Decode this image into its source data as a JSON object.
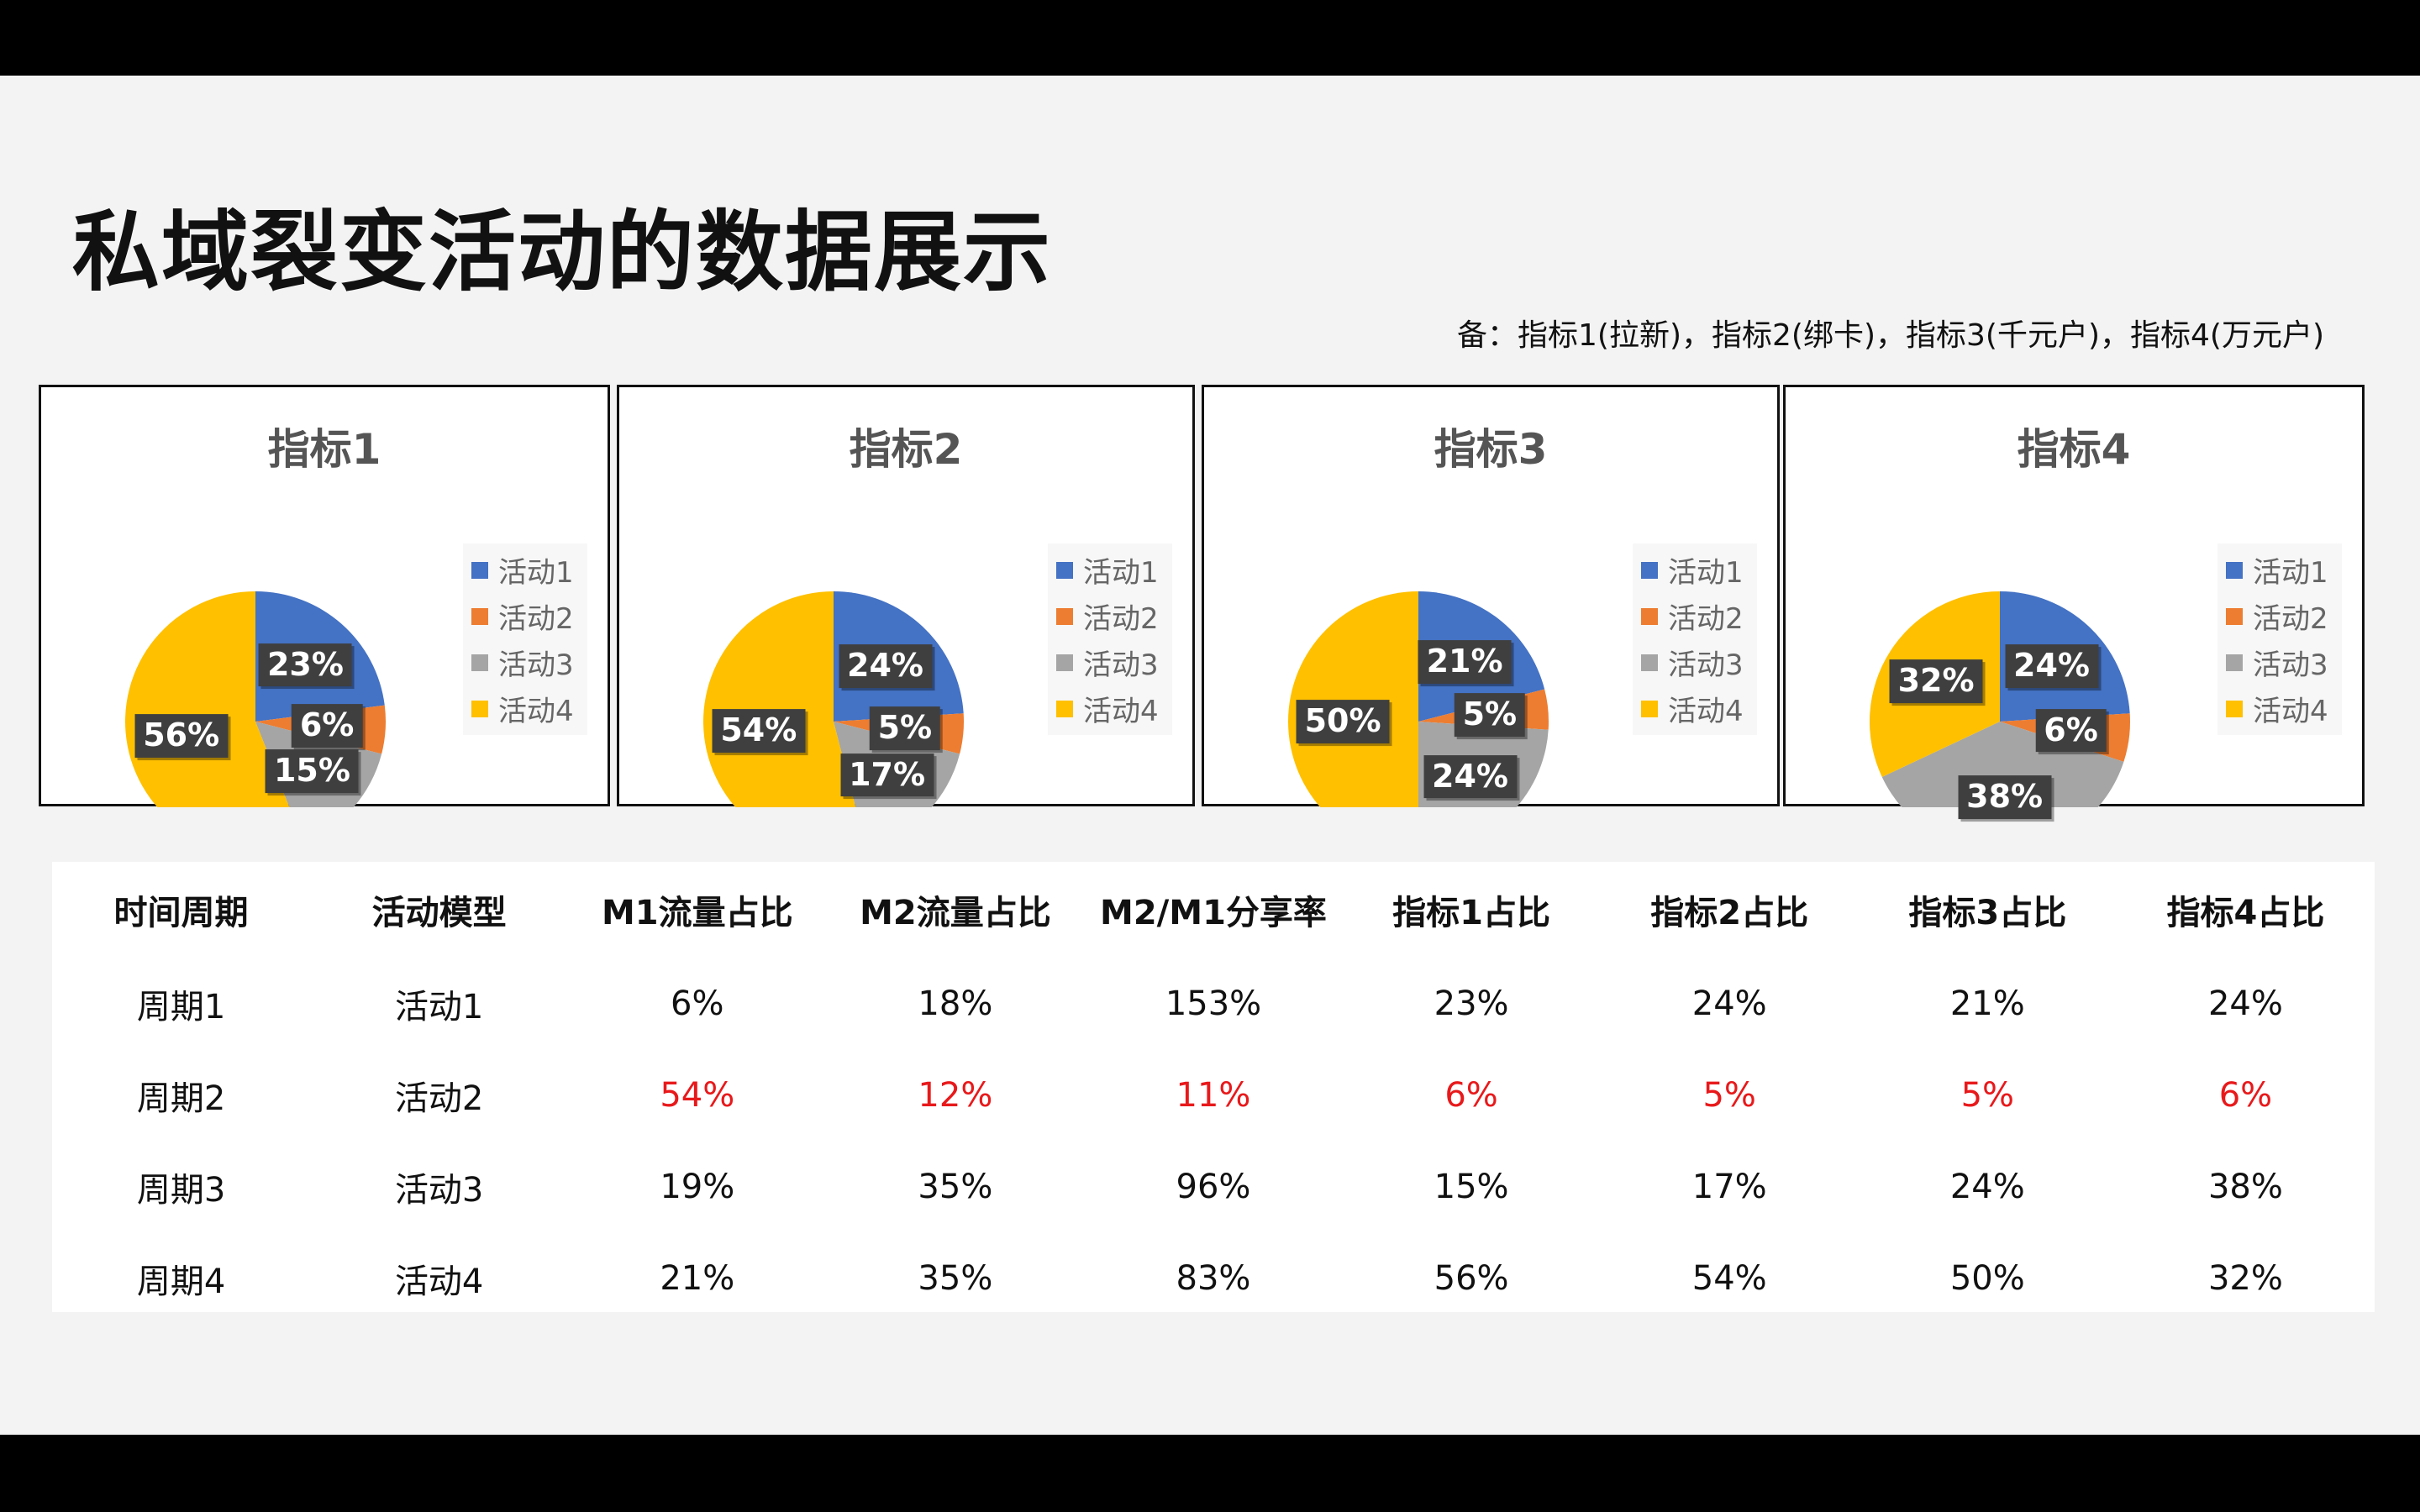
{
  "title": "私域裂变活动的数据展示",
  "note": "备：指标1(拉新)，指标2(绑卡)，指标3(千元户)，指标4(万元户)",
  "colors": {
    "activity1": "#4472C4",
    "activity2": "#ED7D31",
    "activity3": "#A5A5A5",
    "activity4": "#FFC000",
    "highlight_text": "#E8191B"
  },
  "chart_data": [
    {
      "type": "pie",
      "title": "指标1",
      "categories": [
        "活动1",
        "活动2",
        "活动3",
        "活动4"
      ],
      "values": [
        23,
        6,
        15,
        56
      ],
      "labels": [
        "23%",
        "6%",
        "15%",
        "56%"
      ],
      "legend_position": "right"
    },
    {
      "type": "pie",
      "title": "指标2",
      "categories": [
        "活动1",
        "活动2",
        "活动3",
        "活动4"
      ],
      "values": [
        24,
        5,
        17,
        54
      ],
      "labels": [
        "24%",
        "5%",
        "17%",
        "54%"
      ],
      "legend_position": "right"
    },
    {
      "type": "pie",
      "title": "指标3",
      "categories": [
        "活动1",
        "活动2",
        "活动3",
        "活动4"
      ],
      "values": [
        21,
        5,
        24,
        50
      ],
      "labels": [
        "21%",
        "5%",
        "24%",
        "50%"
      ],
      "legend_position": "right"
    },
    {
      "type": "pie",
      "title": "指标4",
      "categories": [
        "活动1",
        "活动2",
        "活动3",
        "活动4"
      ],
      "values": [
        24,
        6,
        38,
        32
      ],
      "labels": [
        "24%",
        "6%",
        "38%",
        "32%"
      ],
      "legend_position": "right"
    }
  ],
  "table": {
    "headers": [
      "时间周期",
      "活动模型",
      "M1流量占比",
      "M2流量占比",
      "M2/M1分享率",
      "指标1占比",
      "指标2占比",
      "指标3占比",
      "指标4占比"
    ],
    "rows": [
      {
        "cells": [
          "周期1",
          "活动1",
          "6%",
          "18%",
          "153%",
          "23%",
          "24%",
          "21%",
          "24%"
        ],
        "highlight": false
      },
      {
        "cells": [
          "周期2",
          "活动2",
          "54%",
          "12%",
          "11%",
          "6%",
          "5%",
          "5%",
          "6%"
        ],
        "highlight": true
      },
      {
        "cells": [
          "周期3",
          "活动3",
          "19%",
          "35%",
          "96%",
          "15%",
          "17%",
          "24%",
          "38%"
        ],
        "highlight": false
      },
      {
        "cells": [
          "周期4",
          "活动4",
          "21%",
          "35%",
          "83%",
          "56%",
          "54%",
          "50%",
          "32%"
        ],
        "highlight": false
      }
    ]
  }
}
